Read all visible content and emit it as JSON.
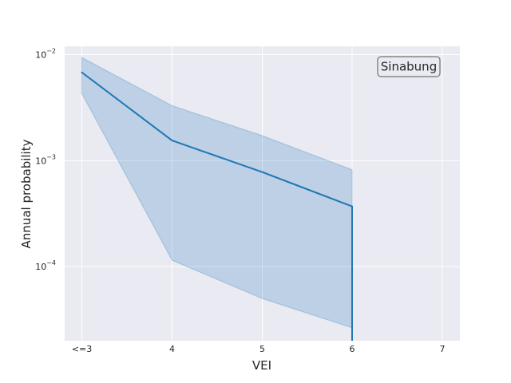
{
  "chart_data": {
    "type": "line",
    "title": "",
    "xlabel": "VEI",
    "ylabel": "Annual probability",
    "x_categories": [
      "<=3",
      "4",
      "5",
      "6",
      "7"
    ],
    "y_scale": "log",
    "ylim": [
      2e-05,
      0.012
    ],
    "y_ticks": [
      {
        "value": 0.01,
        "base": "10",
        "exp": "−2"
      },
      {
        "value": 0.001,
        "base": "10",
        "exp": "−3"
      },
      {
        "value": 0.0001,
        "base": "10",
        "exp": "−4"
      }
    ],
    "grid": true,
    "legend_placement": "top-right",
    "series": [
      {
        "name": "Sinabung",
        "color": "#1f77b4",
        "fill_color": "#1f77b4",
        "x": [
          "<=3",
          "4",
          "5",
          "6"
        ],
        "values": [
          0.0068,
          0.00155,
          0.00078,
          0.00037
        ],
        "lower": [
          0.0043,
          0.000115,
          5e-05,
          2.65e-05
        ],
        "upper": [
          0.0094,
          0.0033,
          0.00172,
          0.00082
        ],
        "drop_to_bottom_at_last_point": true
      }
    ]
  }
}
